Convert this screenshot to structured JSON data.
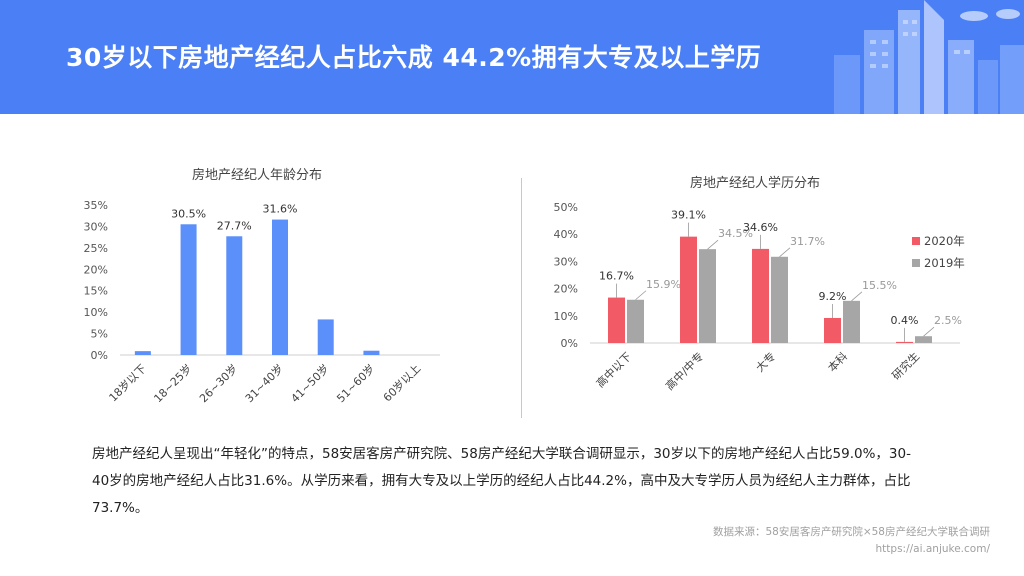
{
  "header": {
    "title": "30岁以下房地产经纪人占比六成 44.2%拥有大专及以上学历"
  },
  "chart_data": [
    {
      "type": "bar",
      "title": "房地产经纪人年龄分布",
      "categories": [
        "18岁以下",
        "18~25岁",
        "26~30岁",
        "31~40岁",
        "41~50岁",
        "51~60岁",
        "60岁以上"
      ],
      "values": [
        0.9,
        30.5,
        27.7,
        31.6,
        8.3,
        1.0,
        0.0
      ],
      "data_labels": [
        "",
        "30.5%",
        "27.7%",
        "31.6%",
        "",
        "",
        ""
      ],
      "yticks": [
        "0%",
        "5%",
        "10%",
        "15%",
        "20%",
        "25%",
        "30%",
        "35%"
      ],
      "ylim": [
        0,
        35
      ],
      "color": "#5b8ff9"
    },
    {
      "type": "bar",
      "title": "房地产经纪人学历分布",
      "categories": [
        "高中以下",
        "高中/中专",
        "大专",
        "本科",
        "研究生"
      ],
      "series": [
        {
          "name": "2020年",
          "values": [
            16.7,
            39.1,
            34.6,
            9.2,
            0.4
          ],
          "labels": [
            "16.7%",
            "39.1%",
            "34.6%",
            "9.2%",
            "0.4%"
          ],
          "color": "#f25a66"
        },
        {
          "name": "2019年",
          "values": [
            15.9,
            34.5,
            31.7,
            15.5,
            2.5
          ],
          "labels": [
            "15.9%",
            "34.5%",
            "31.7%",
            "15.5%",
            "2.5%"
          ],
          "color": "#a6a6a6"
        }
      ],
      "yticks": [
        "0%",
        "10%",
        "20%",
        "30%",
        "40%",
        "50%"
      ],
      "ylim": [
        0,
        50
      ],
      "legend": "right"
    }
  ],
  "body_text": "房地产经纪人呈现出“年轻化”的特点，58安居客房产研究院、58房产经纪大学联合调研显示，30岁以下的房地产经纪人占比59.0%，30-40岁的房地产经纪人占比31.6%。从学历来看，拥有大专及以上学历的经纪人占比44.2%，高中及大专学历人员为经纪人主力群体，占比73.7%。",
  "footer": {
    "source": "数据来源：58安居客房产研究院×58房产经纪大学联合调研",
    "url": "https://ai.anjuke.com/"
  }
}
